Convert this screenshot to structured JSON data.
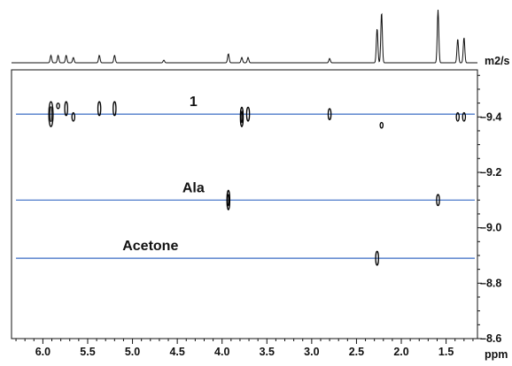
{
  "chart_data": {
    "type": "scatter",
    "subtype": "2D DOSY NMR spectrum",
    "title": "",
    "xlabel": "ppm",
    "ylabel": "m2/s",
    "x_reversed": true,
    "xlim": [
      6.35,
      1.15
    ],
    "ylim": [
      8.6,
      9.57
    ],
    "x_ticks": [
      6.0,
      5.5,
      5.0,
      4.5,
      4.0,
      3.5,
      3.0,
      2.5,
      2.0,
      1.5
    ],
    "x_tick_labels": [
      "6.0",
      "5.5",
      "5.0",
      "4.5",
      "4.0",
      "3.5",
      "3.0",
      "2.5",
      "2.0",
      "1.5"
    ],
    "y_ticks": [
      9.4,
      9.2,
      9.0,
      8.8,
      8.6
    ],
    "y_tick_labels": [
      "–9.4",
      "–9.2",
      "–9.0",
      "–8.8",
      "–8.6"
    ],
    "line_color": "#3a6bc4",
    "contour_color": "#000000",
    "series": [
      {
        "name": "1",
        "diffusion": 9.41,
        "peaks": [
          {
            "x": 5.91,
            "y": 9.41,
            "span": 0.09
          },
          {
            "x": 5.83,
            "y": 9.44,
            "span": 0.02
          },
          {
            "x": 5.74,
            "y": 9.43,
            "span": 0.05
          },
          {
            "x": 5.66,
            "y": 9.4,
            "span": 0.03
          },
          {
            "x": 5.37,
            "y": 9.43,
            "span": 0.05
          },
          {
            "x": 5.2,
            "y": 9.43,
            "span": 0.05
          },
          {
            "x": 3.78,
            "y": 9.4,
            "span": 0.07
          },
          {
            "x": 3.71,
            "y": 9.41,
            "span": 0.05
          },
          {
            "x": 2.8,
            "y": 9.41,
            "span": 0.04
          },
          {
            "x": 2.22,
            "y": 9.37,
            "span": 0.02
          },
          {
            "x": 1.37,
            "y": 9.4,
            "span": 0.03
          },
          {
            "x": 1.3,
            "y": 9.4,
            "span": 0.03
          }
        ]
      },
      {
        "name": "Ala",
        "diffusion": 9.1,
        "peaks": [
          {
            "x": 3.93,
            "y": 9.1,
            "span": 0.07
          },
          {
            "x": 1.59,
            "y": 9.1,
            "span": 0.04
          }
        ]
      },
      {
        "name": "Acetone",
        "diffusion": 8.89,
        "peaks": [
          {
            "x": 2.27,
            "y": 8.89,
            "span": 0.05
          }
        ]
      }
    ],
    "projection_1d": {
      "x": [
        5.91,
        5.83,
        5.74,
        5.66,
        5.37,
        5.2,
        4.65,
        3.93,
        3.78,
        3.71,
        2.8,
        2.27,
        2.22,
        1.59,
        1.37,
        1.3
      ],
      "y": [
        0.14,
        0.14,
        0.14,
        0.1,
        0.14,
        0.14,
        0.05,
        0.17,
        0.1,
        0.1,
        0.08,
        0.65,
        0.95,
        1.0,
        0.45,
        0.48
      ]
    }
  }
}
